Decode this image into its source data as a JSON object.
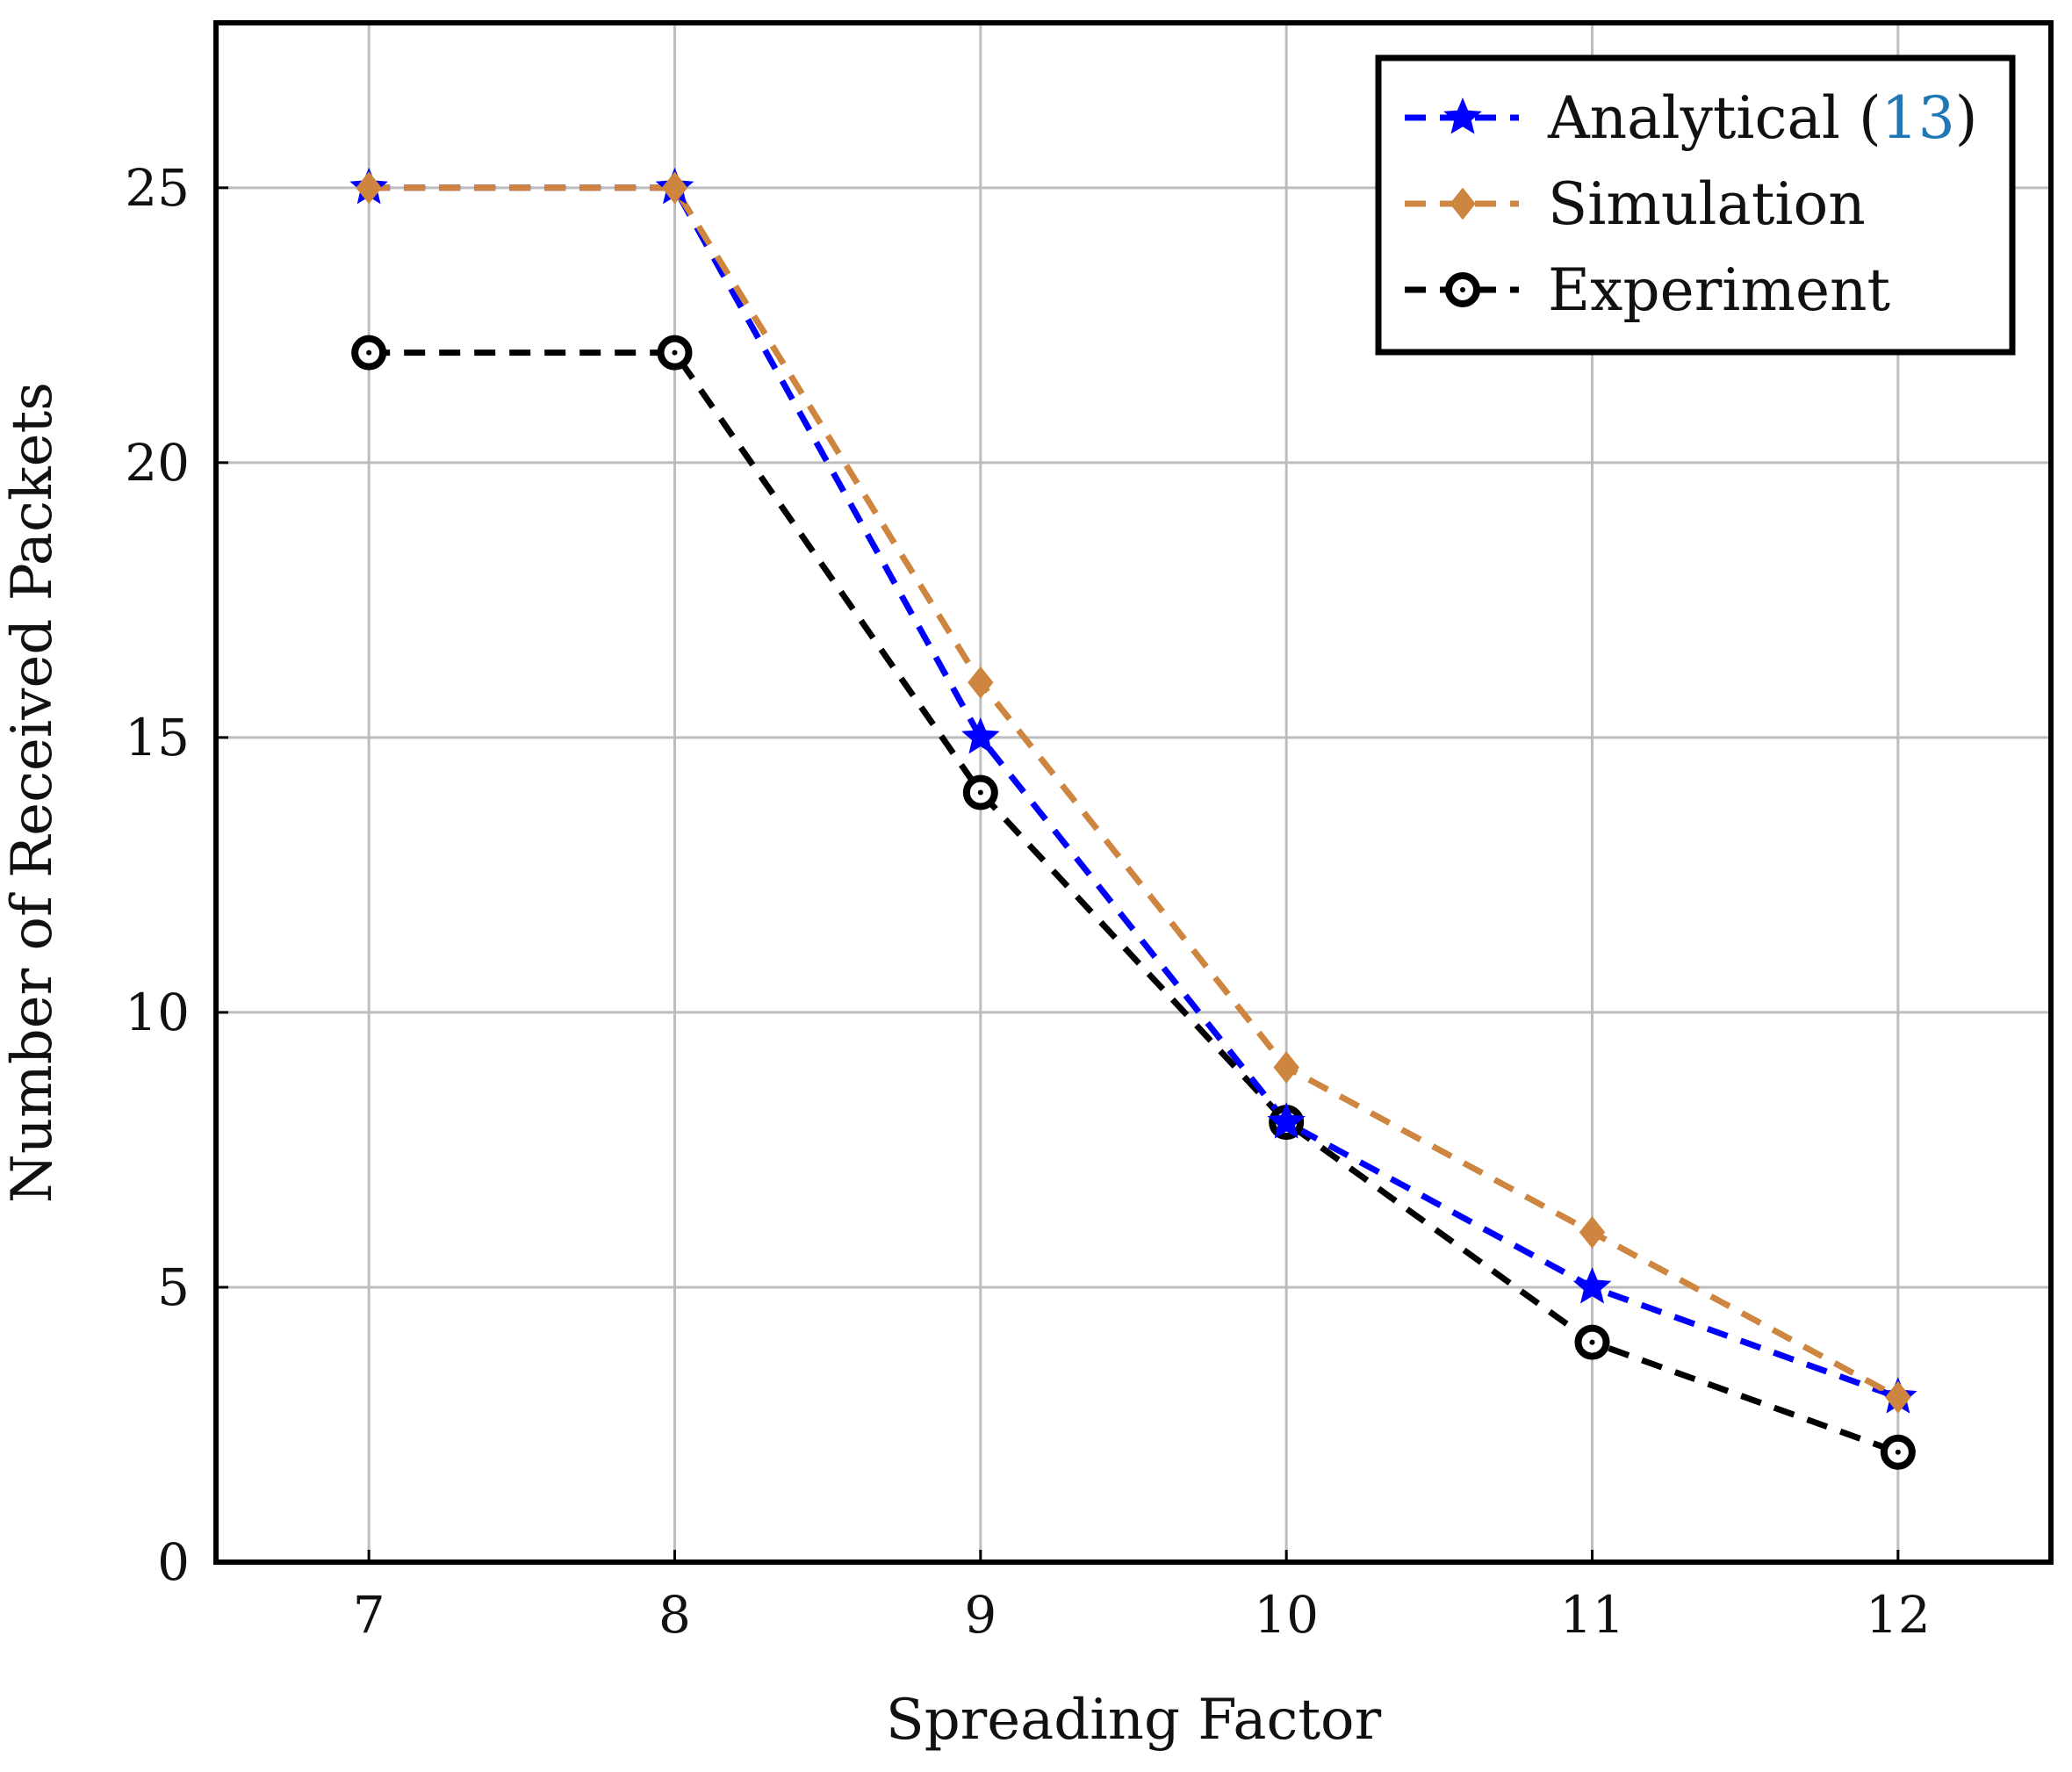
{
  "chart_data": {
    "type": "line",
    "title": "",
    "xlabel": "Spreading Factor",
    "ylabel": "Number of Received Packets",
    "x": [
      7,
      8,
      9,
      10,
      11,
      12
    ],
    "xlim": [
      6.5,
      12.5
    ],
    "ylim": [
      0,
      28
    ],
    "yticks": [
      0,
      5,
      10,
      15,
      20,
      25
    ],
    "xticks": [
      7,
      8,
      9,
      10,
      11,
      12
    ],
    "grid": true,
    "legend_position": "top-right",
    "series": [
      {
        "name": "Analytical",
        "ref": "13",
        "color": "#0000ff",
        "ref_color": "#1f77b4",
        "marker": "star",
        "dash": "dashed",
        "values": [
          25,
          25,
          15,
          8,
          5,
          3
        ]
      },
      {
        "name": "Simulation",
        "color": "#cd853f",
        "marker": "diamond",
        "dash": "dashed",
        "values": [
          25,
          25,
          16,
          9,
          6,
          3
        ]
      },
      {
        "name": "Experiment",
        "color": "#000000",
        "marker": "circle",
        "dash": "dashed",
        "values": [
          22,
          22,
          14,
          8,
          4,
          2
        ]
      }
    ]
  }
}
